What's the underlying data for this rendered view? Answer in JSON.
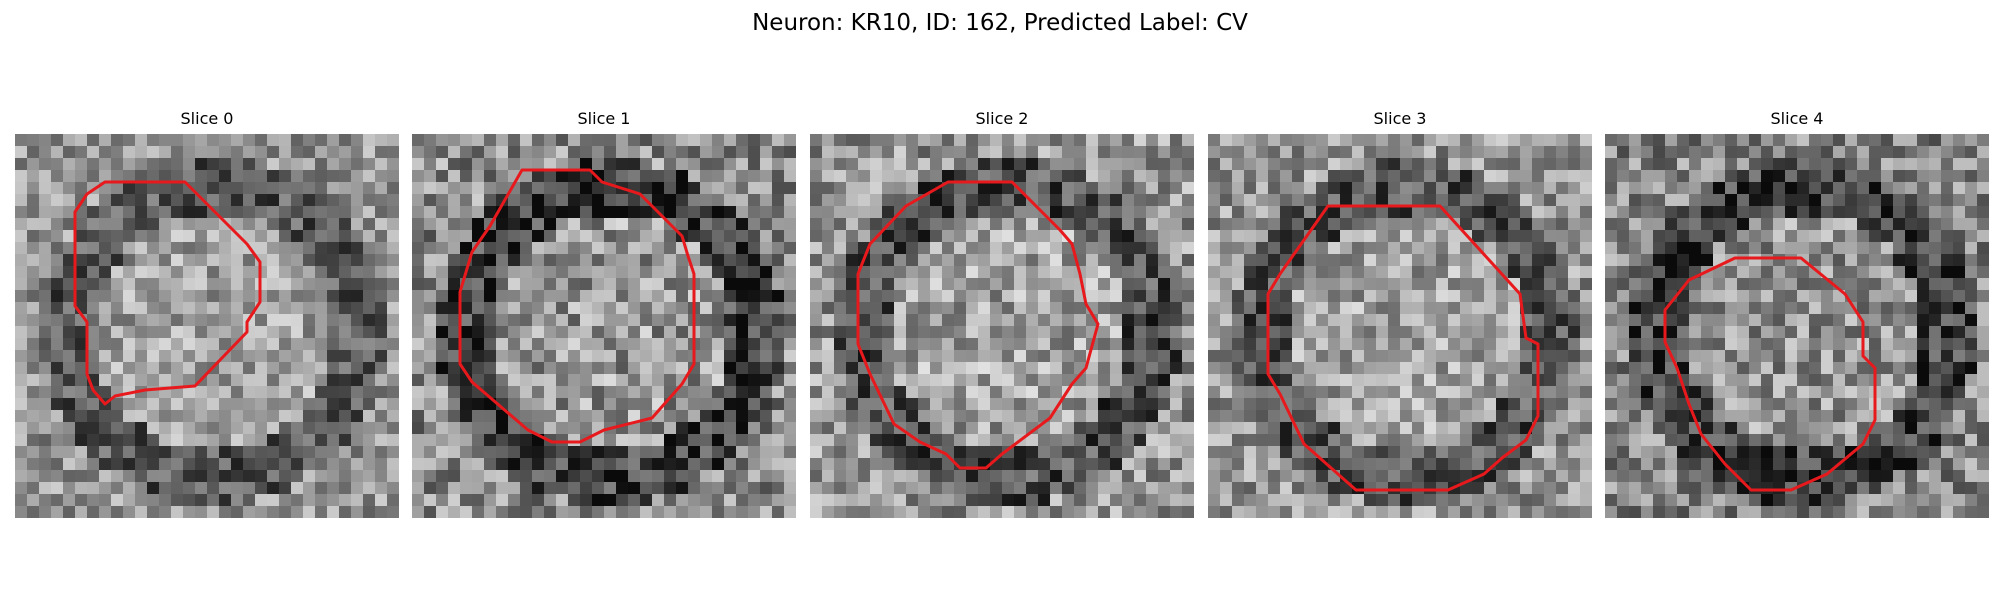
{
  "figure": {
    "title": "Neuron: KR10, ID: 162, Predicted Label: CV",
    "outline_color": "#e8191c"
  },
  "panels": [
    {
      "title": "Slice 0",
      "seed": 11,
      "base": 150,
      "contrast": 70
    },
    {
      "title": "Slice 1",
      "seed": 23,
      "base": 140,
      "contrast": 85
    },
    {
      "title": "Slice 2",
      "seed": 37,
      "base": 150,
      "contrast": 80
    },
    {
      "title": "Slice 3",
      "seed": 51,
      "base": 150,
      "contrast": 75
    },
    {
      "title": "Slice 4",
      "seed": 67,
      "base": 135,
      "contrast": 80
    }
  ]
}
